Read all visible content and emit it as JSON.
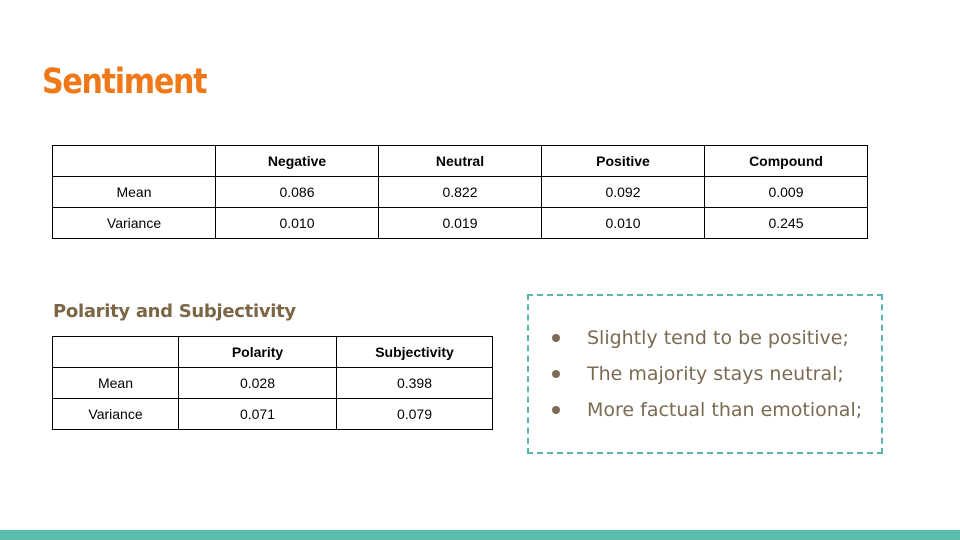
{
  "title": "Sentiment",
  "sentiment_table": {
    "headers": [
      "",
      "Negative",
      "Neutral",
      "Positive",
      "Compound"
    ],
    "rows": [
      [
        "Mean",
        "0.086",
        "0.822",
        "0.092",
        "0.009"
      ],
      [
        "Variance",
        "0.010",
        "0.019",
        "0.010",
        "0.245"
      ]
    ]
  },
  "polarity_section": {
    "heading": "Polarity and Subjectivity",
    "table": {
      "headers": [
        "",
        "Polarity",
        "Subjectivity"
      ],
      "rows": [
        [
          "Mean",
          "0.028",
          "0.398"
        ],
        [
          "Variance",
          "0.071",
          "0.079"
        ]
      ]
    }
  },
  "callout": {
    "bullets": [
      "Slightly tend to be positive;",
      "The majority stays neutral;",
      "More factual than emotional;"
    ]
  },
  "colors": {
    "title": "#ef7918",
    "subheading": "#7b6645",
    "bullet_text": "#7a6b52",
    "callout_border": "#5bb4ad",
    "bottom_bar": "#5bbcae"
  }
}
